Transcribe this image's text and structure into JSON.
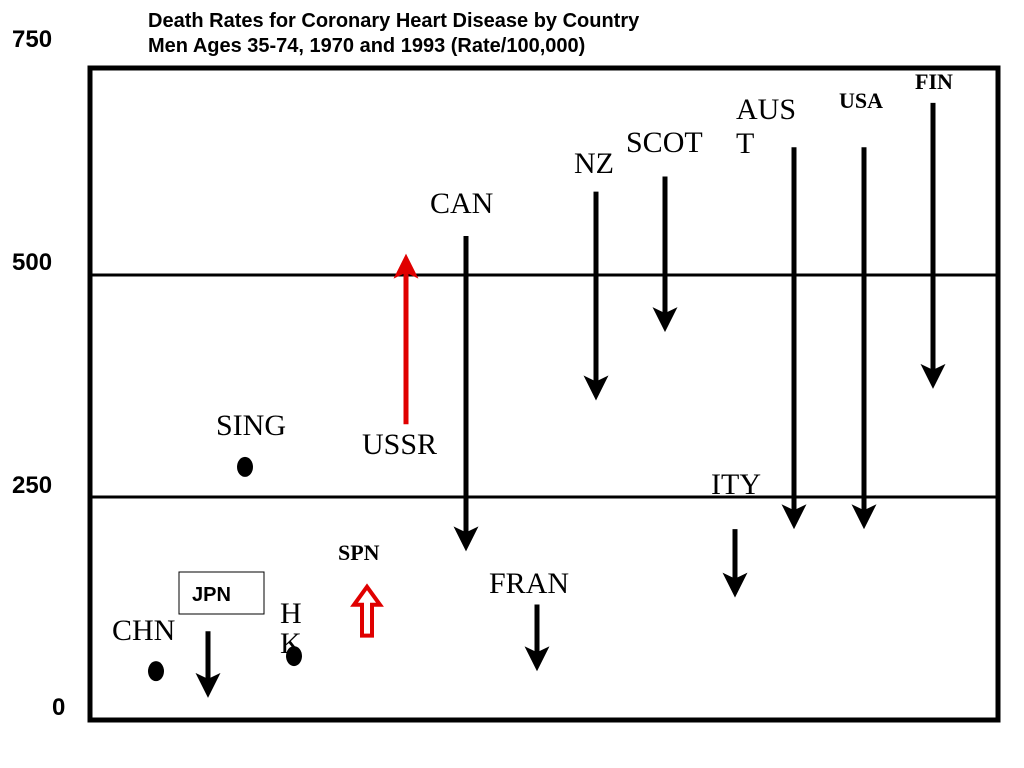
{
  "chart_data": {
    "type": "arrow",
    "title_lines": [
      "Death Rates for Coronary Heart Disease by Country",
      "Men Ages 35-74, 1970 and 1993 (Rate/100,000)"
    ],
    "ylim": [
      0,
      750
    ],
    "yticks": [
      "750",
      "500",
      "250",
      "0"
    ],
    "gridlines": [
      250,
      500
    ],
    "countries": [
      {
        "label": "CHN",
        "kind": "dot",
        "value_1970": 55,
        "value_1993": 55,
        "color": "#000000"
      },
      {
        "label": "JPN",
        "kind": "arrow",
        "value_1970": 100,
        "value_1993": 35,
        "color": "#000000"
      },
      {
        "label": "SING",
        "kind": "dot",
        "value_1970": 285,
        "value_1993": 285,
        "color": "#000000"
      },
      {
        "label": "HK",
        "label_lines": [
          "H",
          "K"
        ],
        "kind": "dot",
        "value_1970": 72,
        "value_1993": 72,
        "color": "#000000"
      },
      {
        "label": "SPN",
        "kind": "hollow-arrow",
        "value_1970": 95,
        "value_1993": 150,
        "color": "#e00000"
      },
      {
        "label": "USSR",
        "kind": "arrow",
        "value_1970": 333,
        "value_1993": 515,
        "color": "#e00000"
      },
      {
        "label": "CAN",
        "kind": "arrow",
        "value_1970": 545,
        "value_1993": 200,
        "color": "#000000"
      },
      {
        "label": "FRAN",
        "kind": "arrow",
        "value_1970": 130,
        "value_1993": 65,
        "color": "#000000"
      },
      {
        "label": "NZ",
        "kind": "arrow",
        "value_1970": 595,
        "value_1993": 370,
        "color": "#000000"
      },
      {
        "label": "SCOT",
        "kind": "arrow",
        "value_1970": 612,
        "value_1993": 447,
        "color": "#000000"
      },
      {
        "label": "ITY",
        "kind": "arrow",
        "value_1970": 215,
        "value_1993": 148,
        "color": "#000000"
      },
      {
        "label": "AUST",
        "label_lines": [
          "AUS",
          "T"
        ],
        "kind": "arrow",
        "value_1970": 645,
        "value_1993": 225,
        "color": "#000000"
      },
      {
        "label": "USA",
        "kind": "arrow",
        "value_1970": 645,
        "value_1993": 225,
        "color": "#000000"
      },
      {
        "label": "FIN",
        "kind": "arrow",
        "value_1970": 695,
        "value_1993": 383,
        "color": "#000000"
      }
    ]
  }
}
